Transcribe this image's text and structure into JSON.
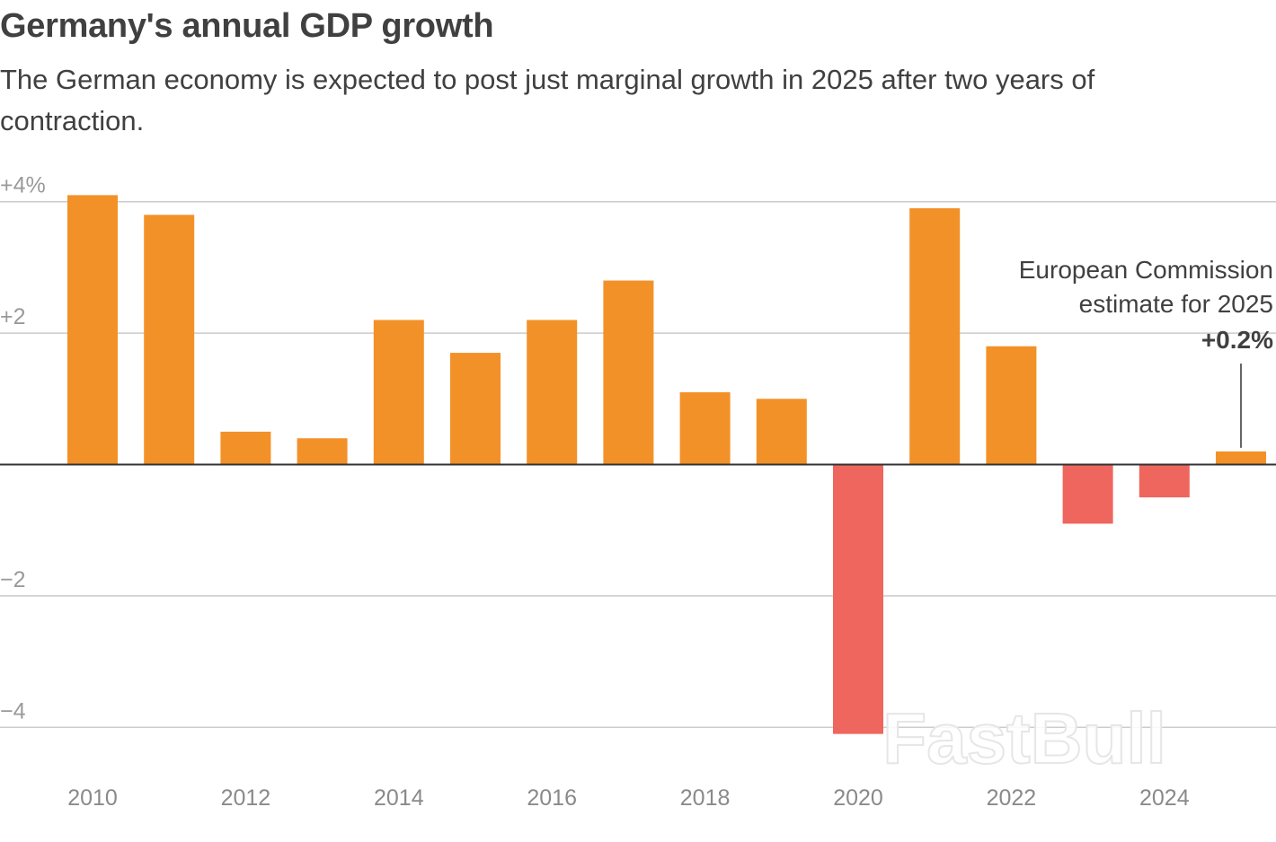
{
  "header": {
    "title": "Germany's annual GDP growth",
    "subtitle": "The German economy is expected to post just marginal growth in 2025 after two years of contraction."
  },
  "colors": {
    "positive": "#f39129",
    "negative": "#ee665d",
    "grid": "#cccccc",
    "zero_line": "#333333",
    "text": "#404040"
  },
  "watermark": "FastBull",
  "chart_data": {
    "type": "bar",
    "title": "Germany's annual GDP growth",
    "xlabel": "",
    "ylabel": "",
    "ylim": [
      -4.5,
      4.3
    ],
    "grid": true,
    "categories": [
      "2010",
      "2011",
      "2012",
      "2013",
      "2014",
      "2015",
      "2016",
      "2017",
      "2018",
      "2019",
      "2020",
      "2021",
      "2022",
      "2023",
      "2024",
      "2025"
    ],
    "values": [
      4.1,
      3.8,
      0.5,
      0.4,
      2.2,
      1.7,
      2.2,
      2.8,
      1.1,
      1.0,
      -4.1,
      3.9,
      1.8,
      -0.9,
      -0.5,
      0.2
    ],
    "y_ticks": [
      {
        "value": 4,
        "label": "+4%"
      },
      {
        "value": 2,
        "label": "+2"
      },
      {
        "value": -2,
        "label": "−2"
      },
      {
        "value": -4,
        "label": "−4"
      }
    ],
    "x_ticks": [
      "2010",
      "2012",
      "2014",
      "2016",
      "2018",
      "2020",
      "2022",
      "2024"
    ],
    "annotation": {
      "target": "2025",
      "line1": "European Commission",
      "line2": "estimate for 2025",
      "value_label": "+0.2%"
    }
  }
}
